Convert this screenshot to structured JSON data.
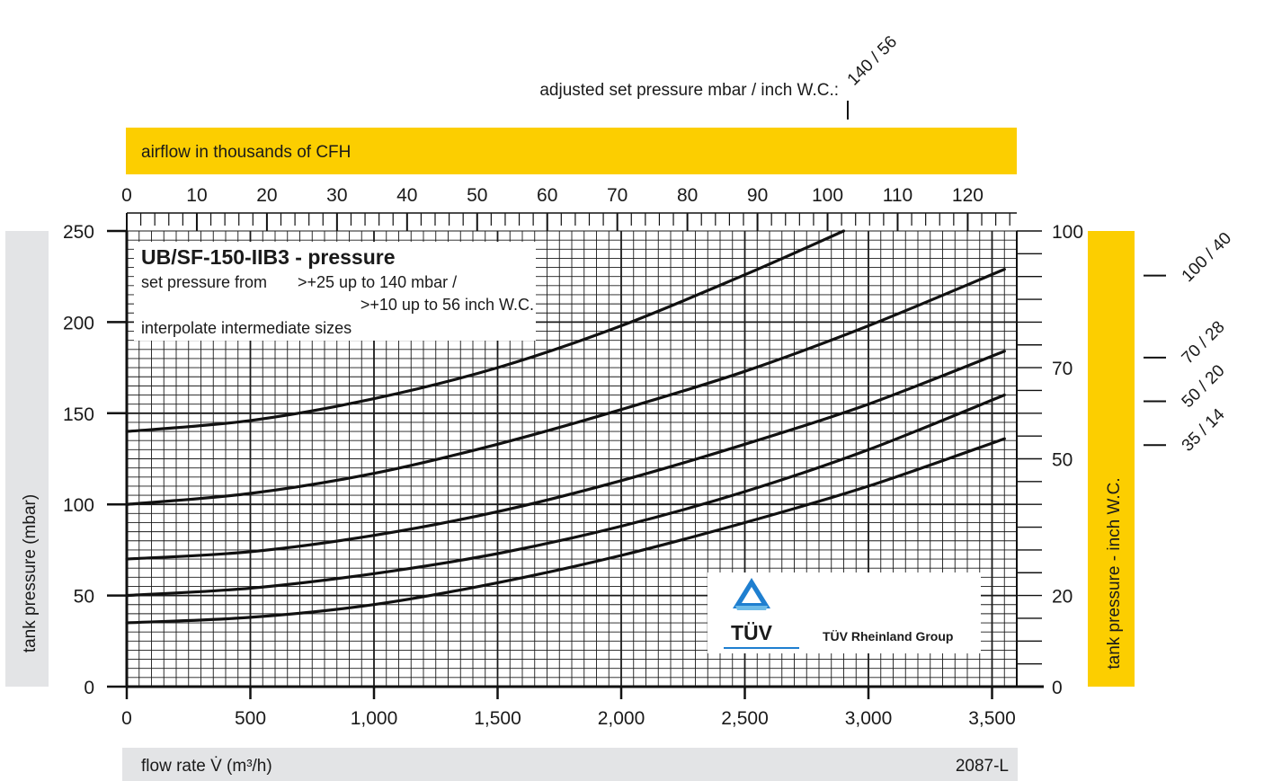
{
  "chart_data": {
    "type": "line",
    "header_label": "adjusted set pressure mbar / inch W.C.:",
    "top_axis": {
      "label": "airflow in thousands of CFH",
      "ticks": [
        0,
        10,
        20,
        30,
        40,
        50,
        60,
        70,
        80,
        90,
        100,
        110,
        120
      ],
      "range": [
        0,
        127
      ]
    },
    "x_axis": {
      "label": "flow rate V̇ (m³/h)",
      "unit_note": "m³/h",
      "ticks": [
        "0",
        "500",
        "1,000",
        "1,500",
        "2,000",
        "2,500",
        "3,000",
        "3,500"
      ],
      "tick_values": [
        0,
        500,
        1000,
        1500,
        2000,
        2500,
        3000,
        3500
      ],
      "range": [
        0,
        3600
      ]
    },
    "y_axis_left": {
      "label": "tank pressure (mbar)",
      "ticks": [
        0,
        50,
        100,
        150,
        200,
        250
      ],
      "range": [
        0,
        250
      ]
    },
    "y_axis_right": {
      "label": "tank pressure  - inch W.C.",
      "ticks": [
        {
          "label": "0",
          "mbar": 0
        },
        {
          "label": "20",
          "mbar": 50
        },
        {
          "label": "50",
          "mbar": 125
        },
        {
          "label": "70",
          "mbar": 175
        },
        {
          "label": "100",
          "mbar": 250
        }
      ]
    },
    "legend_box": {
      "title": "UB/SF-150-IIB3 - pressure",
      "line1a": "set pressure from",
      "line1b": ">+25 up to 140 mbar /",
      "line2": ">+10 up to 56 inch W.C.",
      "line3": "interpolate intermediate sizes",
      "placement": "top-left"
    },
    "logo": {
      "mark": "TÜV",
      "text": "TÜV Rheinland Group",
      "placement": "bottom-right"
    },
    "doc_id": "2087-L",
    "grid": true,
    "series": [
      {
        "name": "140 / 56",
        "set_mbar": 140,
        "x": [
          0,
          500,
          1000,
          1500,
          2000,
          2500,
          2900
        ],
        "y": [
          140,
          146,
          158,
          175,
          198,
          226,
          250
        ]
      },
      {
        "name": "100 / 40",
        "set_mbar": 100,
        "x": [
          0,
          500,
          1000,
          1500,
          2000,
          2500,
          3000,
          3550
        ],
        "y": [
          100,
          106,
          117,
          133,
          152,
          173,
          198,
          229
        ]
      },
      {
        "name": "70 / 28",
        "set_mbar": 70,
        "x": [
          0,
          500,
          1000,
          1500,
          2000,
          2500,
          3000,
          3550
        ],
        "y": [
          70,
          74,
          83,
          96,
          113,
          133,
          155,
          184
        ]
      },
      {
        "name": "50 / 20",
        "set_mbar": 50,
        "x": [
          0,
          500,
          1000,
          1500,
          2000,
          2500,
          3000,
          3550
        ],
        "y": [
          50,
          54,
          62,
          73,
          88,
          107,
          130,
          160
        ]
      },
      {
        "name": "35 / 14",
        "set_mbar": 35,
        "x": [
          0,
          500,
          1000,
          1500,
          2000,
          2500,
          3000,
          3550
        ],
        "y": [
          35,
          38,
          45,
          57,
          72,
          90,
          110,
          136
        ]
      }
    ]
  },
  "colors": {
    "band_yellow": "#fcce00",
    "band_grey": "#e3e4e6",
    "grid": "#1a1a1a",
    "curve": "#111111"
  }
}
